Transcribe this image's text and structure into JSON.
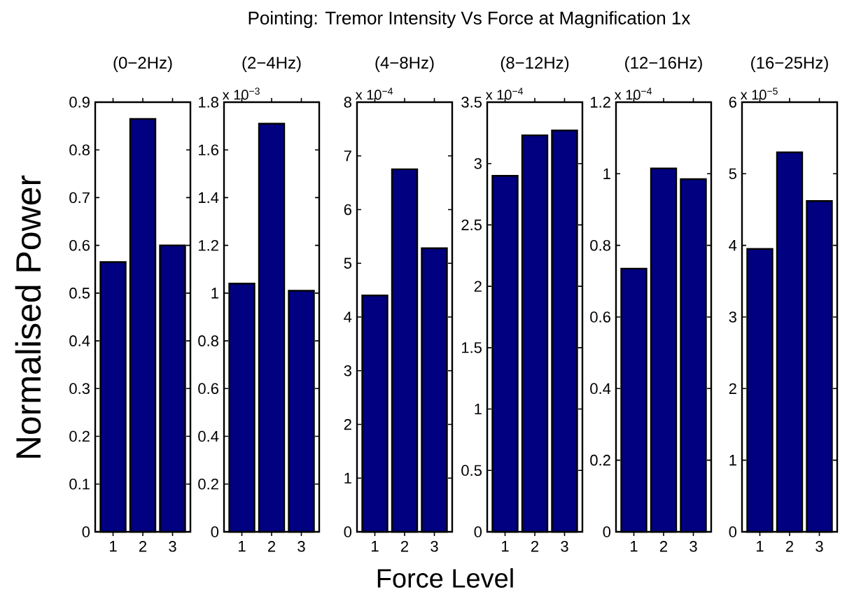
{
  "chart_data": [
    {
      "type": "other",
      "title": "Pointing: Tremor Intensity Vs Force at Magnification 1x",
      "xlabel": "Force Level",
      "ylabel": "Normalised Power"
    },
    {
      "type": "bar",
      "title": "(0−2Hz)",
      "categories": [
        "1",
        "2",
        "3"
      ],
      "values": [
        0.565,
        0.865,
        0.6
      ],
      "color": "#000080",
      "ylim": [
        0,
        0.9
      ],
      "yticks": [
        0,
        0.1,
        0.2,
        0.3,
        0.4,
        0.5,
        0.6,
        0.7,
        0.8,
        0.9
      ]
    },
    {
      "type": "bar",
      "title": "(2−4Hz)",
      "annotations": [
        "x 10$^{−3}$"
      ],
      "categories": [
        "1",
        "2",
        "3"
      ],
      "values": [
        1.04,
        1.71,
        1.01
      ],
      "color": "#000080",
      "ylim": [
        0,
        1.8
      ],
      "yticks": [
        0,
        0.2,
        0.4,
        0.6,
        0.8,
        1,
        1.2,
        1.4,
        1.6,
        1.8
      ]
    },
    {
      "type": "bar",
      "title": "(4−8Hz)",
      "annotations": [
        "x 10$^{−4}$"
      ],
      "categories": [
        "1",
        "2",
        "3"
      ],
      "values": [
        4.4,
        6.75,
        5.28
      ],
      "color": "#000080",
      "ylim": [
        0,
        8
      ],
      "yticks": [
        0,
        1,
        2,
        3,
        4,
        5,
        6,
        7,
        8
      ]
    },
    {
      "type": "bar",
      "title": "(8−12Hz)",
      "annotations": [
        "x 10$^{−4}$"
      ],
      "categories": [
        "1",
        "2",
        "3"
      ],
      "values": [
        2.9,
        3.23,
        3.27
      ],
      "color": "#000080",
      "ylim": [
        0,
        3.5
      ],
      "yticks": [
        0,
        0.5,
        1,
        1.5,
        2,
        2.5,
        3,
        3.5
      ]
    },
    {
      "type": "bar",
      "title": "(12−16Hz)",
      "annotations": [
        "x 10$^{−4}$"
      ],
      "categories": [
        "1",
        "2",
        "3"
      ],
      "values": [
        0.735,
        1.015,
        0.985
      ],
      "color": "#000080",
      "ylim": [
        0,
        1.2
      ],
      "yticks": [
        0,
        0.2,
        0.4,
        0.6,
        0.8,
        1,
        1.2
      ]
    },
    {
      "type": "bar",
      "title": "(16−25Hz)",
      "annotations": [
        "x 10$^{−5}$"
      ],
      "categories": [
        "1",
        "2",
        "3"
      ],
      "values": [
        3.95,
        5.3,
        4.62
      ],
      "color": "#000080",
      "ylim": [
        0,
        6
      ],
      "yticks": [
        0,
        1,
        2,
        3,
        4,
        5,
        6
      ]
    }
  ]
}
